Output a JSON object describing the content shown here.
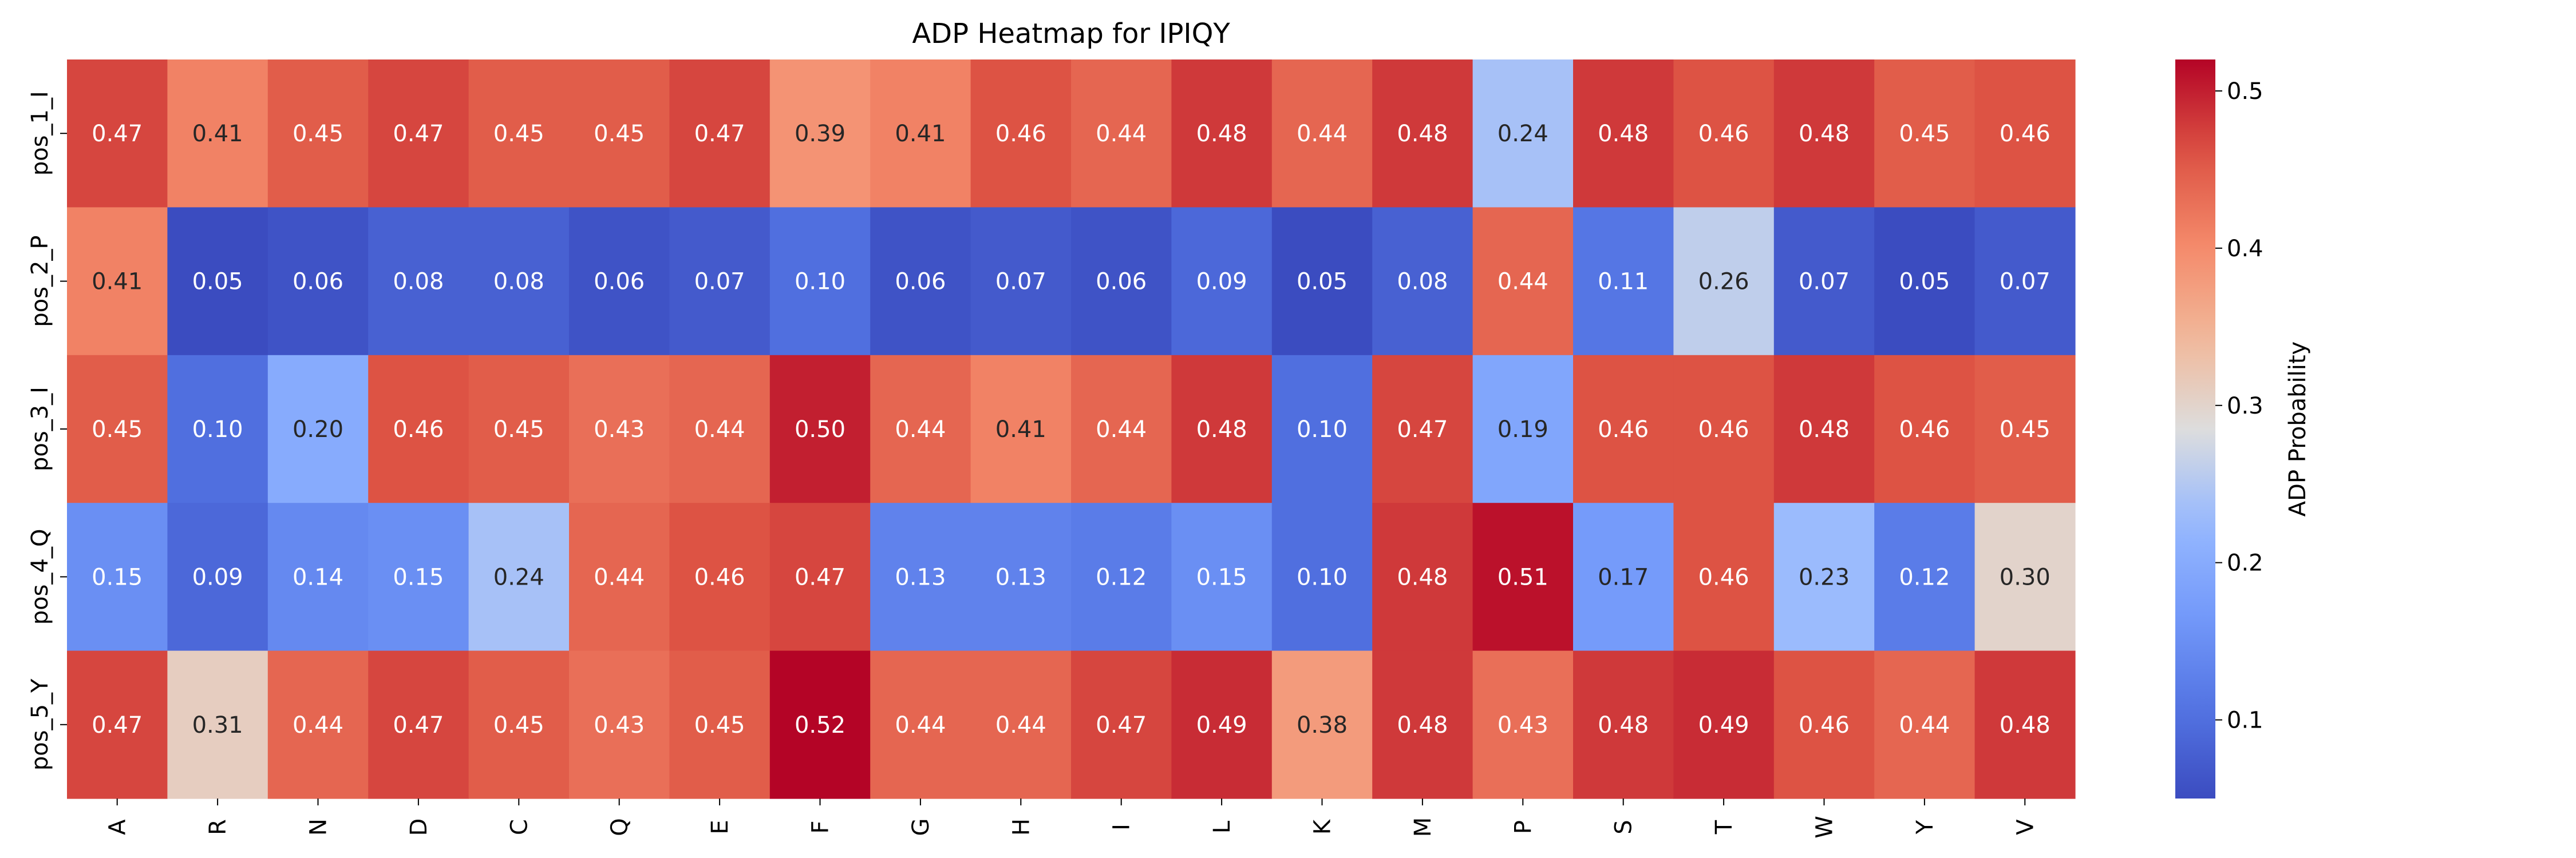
{
  "chart_data": {
    "type": "heatmap",
    "title": "ADP Heatmap for IPIQY",
    "x_categories": [
      "A",
      "R",
      "N",
      "D",
      "C",
      "Q",
      "E",
      "F",
      "G",
      "H",
      "I",
      "L",
      "K",
      "M",
      "P",
      "S",
      "T",
      "W",
      "Y",
      "V"
    ],
    "y_categories": [
      "pos_1_I",
      "pos_2_P",
      "pos_3_I",
      "pos_4_Q",
      "pos_5_Y"
    ],
    "values": [
      [
        0.47,
        0.41,
        0.45,
        0.47,
        0.45,
        0.45,
        0.47,
        0.39,
        0.41,
        0.46,
        0.44,
        0.48,
        0.44,
        0.48,
        0.24,
        0.48,
        0.46,
        0.48,
        0.45,
        0.46
      ],
      [
        0.41,
        0.05,
        0.06,
        0.08,
        0.08,
        0.06,
        0.07,
        0.1,
        0.06,
        0.07,
        0.06,
        0.09,
        0.05,
        0.08,
        0.44,
        0.11,
        0.26,
        0.07,
        0.05,
        0.07
      ],
      [
        0.45,
        0.1,
        0.2,
        0.46,
        0.45,
        0.43,
        0.44,
        0.5,
        0.44,
        0.41,
        0.44,
        0.48,
        0.1,
        0.47,
        0.19,
        0.46,
        0.46,
        0.48,
        0.46,
        0.45
      ],
      [
        0.15,
        0.09,
        0.14,
        0.15,
        0.24,
        0.44,
        0.46,
        0.47,
        0.13,
        0.13,
        0.12,
        0.15,
        0.1,
        0.48,
        0.51,
        0.17,
        0.46,
        0.23,
        0.12,
        0.3
      ],
      [
        0.47,
        0.31,
        0.44,
        0.47,
        0.45,
        0.43,
        0.45,
        0.52,
        0.44,
        0.44,
        0.47,
        0.49,
        0.38,
        0.48,
        0.43,
        0.48,
        0.49,
        0.46,
        0.44,
        0.48
      ]
    ],
    "value_format_decimals": 2,
    "colormap": "coolwarm",
    "vmin": 0.05,
    "vmax": 0.52,
    "colorbar": {
      "label": "ADP Probability",
      "ticks": [
        0.1,
        0.2,
        0.3,
        0.4,
        0.5
      ]
    },
    "grid": false,
    "legend": "colorbar-right"
  }
}
